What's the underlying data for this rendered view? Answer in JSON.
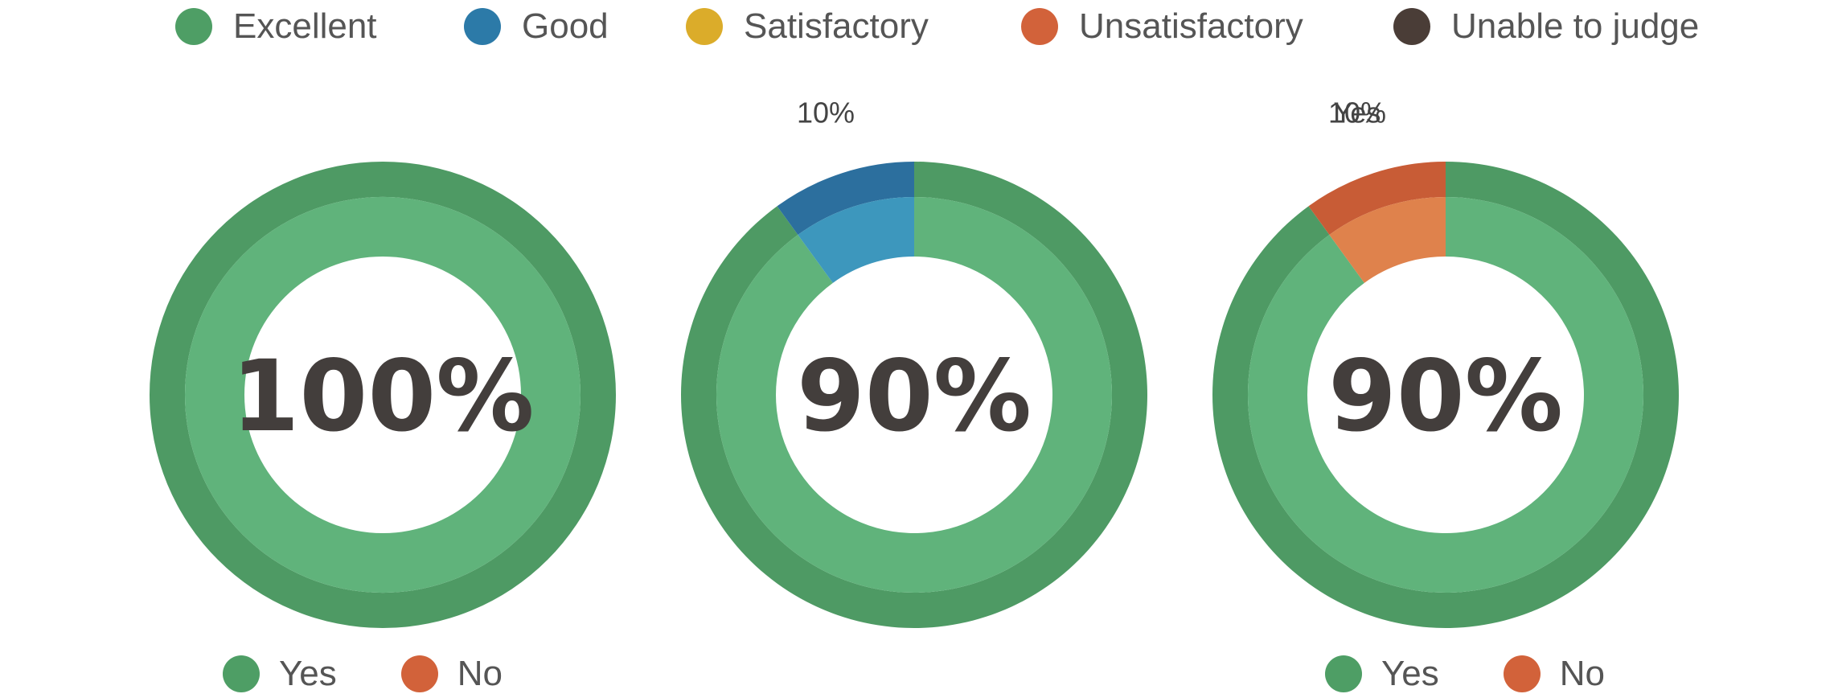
{
  "legend": {
    "items": [
      {
        "label": "Excellent",
        "color": "#4e9e65"
      },
      {
        "label": "Good",
        "color": "#2c7aa8"
      },
      {
        "label": "Satisfactory",
        "color": "#dbac2a"
      },
      {
        "label": "Unsatisfactory",
        "color": "#d2623a"
      },
      {
        "label": "Unable to judge",
        "color": "#4a3d37"
      }
    ]
  },
  "colors": {
    "green_outer": "#4e9a64",
    "green_inner": "#60b37b",
    "blue_outer": "#2c6f9e",
    "blue_inner": "#3d97bd",
    "orange_outer": "#c85c36",
    "orange_inner": "#df824c"
  },
  "chart_data": [
    {
      "type": "pie",
      "center_label": "100%",
      "slices": [
        {
          "label": "Yes",
          "value": 100,
          "color": "green"
        }
      ],
      "legend": [
        {
          "label": "Yes",
          "color": "#4e9e65"
        },
        {
          "label": "No",
          "color": "#d2623a"
        }
      ]
    },
    {
      "type": "pie",
      "center_label": "90%",
      "slices": [
        {
          "label": "",
          "value": 90,
          "color": "green"
        },
        {
          "label": "10%",
          "value": 10,
          "color": "blue"
        }
      ]
    },
    {
      "type": "pie",
      "center_label": "90%",
      "slices": [
        {
          "label": "Yes",
          "value": 90,
          "color": "green"
        },
        {
          "label": "10%",
          "value": 10,
          "color": "orange"
        }
      ],
      "legend": [
        {
          "label": "Yes",
          "color": "#4e9e65"
        },
        {
          "label": "No",
          "color": "#d2623a"
        }
      ]
    }
  ]
}
